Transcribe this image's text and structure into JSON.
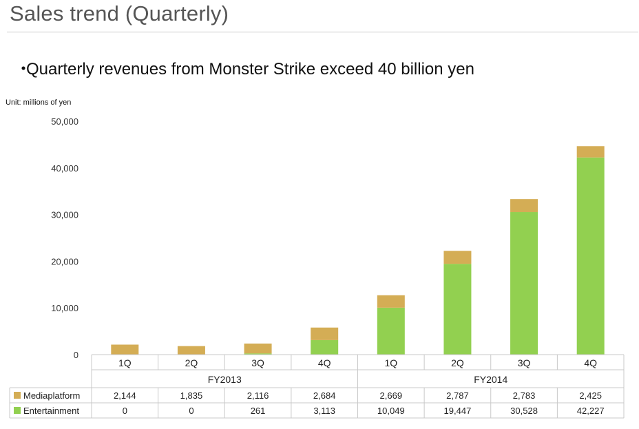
{
  "header": {
    "title": "Sales trend (Quarterly)",
    "bullet": "Quarterly revenues from Monster Strike exceed 40 billion yen",
    "bullet_marker": "・"
  },
  "colors": {
    "mediaplatform": "#d4ad55",
    "entertainment": "#92d050",
    "grid": "#c8c8c8"
  },
  "chart_data": {
    "type": "bar",
    "stacked": true,
    "unit_label": "Unit: millions of yen",
    "ylim": [
      0,
      50000
    ],
    "yticks": [
      {
        "value": 0,
        "label": "0"
      },
      {
        "value": 10000,
        "label": "10,000"
      },
      {
        "value": 20000,
        "label": "20,000"
      },
      {
        "value": 30000,
        "label": "30,000"
      },
      {
        "value": 40000,
        "label": "40,000"
      },
      {
        "value": 50000,
        "label": "50,000"
      }
    ],
    "categories": [
      "1Q",
      "2Q",
      "3Q",
      "4Q",
      "1Q",
      "2Q",
      "3Q",
      "4Q"
    ],
    "groups": [
      {
        "label": "FY2013",
        "count": 4
      },
      {
        "label": "FY2014",
        "count": 4
      }
    ],
    "series": [
      {
        "name": "Entertainment",
        "color": "#92d050",
        "values": [
          0,
          0,
          261,
          3113,
          10049,
          19447,
          30528,
          42227
        ],
        "labels": [
          "0",
          "0",
          "261",
          "3,113",
          "10,049",
          "19,447",
          "30,528",
          "42,227"
        ]
      },
      {
        "name": "Mediaplatform",
        "color": "#d4ad55",
        "values": [
          2144,
          1835,
          2116,
          2684,
          2669,
          2787,
          2783,
          2425
        ],
        "labels": [
          "2,144",
          "1,835",
          "2,116",
          "2,684",
          "2,669",
          "2,787",
          "2,783",
          "2,425"
        ]
      }
    ],
    "table_row_order": [
      "Mediaplatform",
      "Entertainment"
    ],
    "legend": "in-table",
    "grid": false
  }
}
